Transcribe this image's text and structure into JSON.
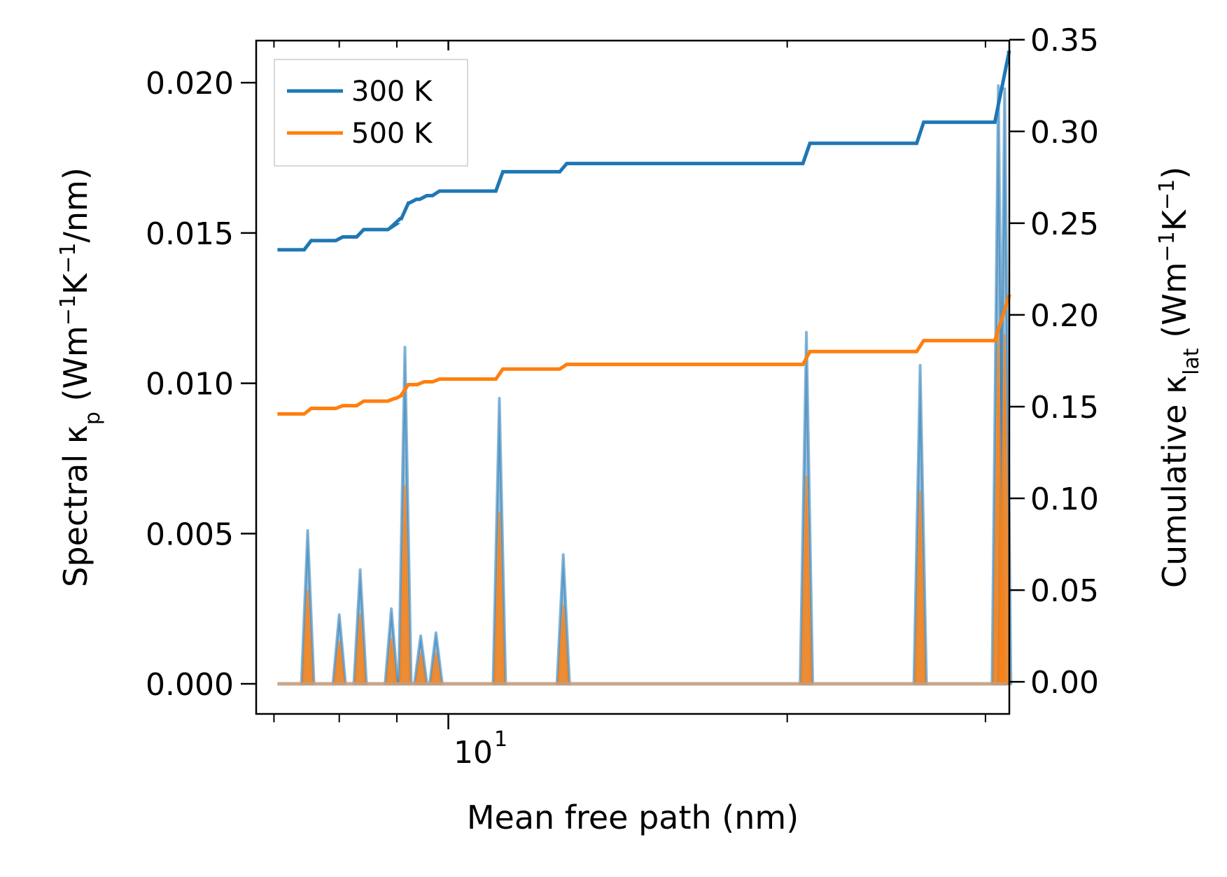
{
  "chart_data": {
    "type": "line",
    "title": "",
    "xlabel": "Mean free path (nm)",
    "xscale": "log",
    "x_range": [
      6.75,
      31.5
    ],
    "x_major_tick_label": {
      "base": "10",
      "exponent": "1",
      "value": 10
    },
    "x_minor_ticks": [
      7,
      8,
      9,
      20,
      30
    ],
    "ylabel_left": {
      "main": "Spectral κ",
      "sub": "p",
      "units": "(Wm",
      "sup1": "−1",
      "mid": "K",
      "sup2": "−1",
      "tail": "/nm)"
    },
    "ylim_left": [
      -0.001,
      0.0214
    ],
    "yticks_left": [
      "0.000",
      "0.005",
      "0.010",
      "0.015",
      "0.020"
    ],
    "ylabel_right": {
      "main": "Cumulative κ",
      "sub": "lat",
      "units": "(Wm",
      "sup1": "−1",
      "mid": "K",
      "sup2": "−1",
      "tail": ")"
    },
    "ylim_right": [
      -0.0175,
      0.3495
    ],
    "yticks_right": [
      "0.00",
      "0.05",
      "0.10",
      "0.15",
      "0.20",
      "0.25",
      "0.30",
      "0.35"
    ],
    "legend": {
      "placement": "upper-left",
      "entries": [
        {
          "label": "300 K",
          "color": "#1f77b4"
        },
        {
          "label": "500 K",
          "color": "#ff7f0e"
        }
      ]
    },
    "colors": {
      "300K": "#1f77b4",
      "500K": "#ff7f0e",
      "spike_300K": "#7aa7cb",
      "spike_500K": "#c39d7e"
    },
    "spectral_peaks": [
      {
        "mfp": 7.5,
        "k300": 0.0051,
        "k500": 0.0031
      },
      {
        "mfp": 8.0,
        "k300": 0.0023,
        "k500": 0.0014
      },
      {
        "mfp": 8.35,
        "k300": 0.0038,
        "k500": 0.0023
      },
      {
        "mfp": 8.9,
        "k300": 0.0025,
        "k500": 0.0015
      },
      {
        "mfp": 9.15,
        "k300": 0.0112,
        "k500": 0.0066
      },
      {
        "mfp": 9.45,
        "k300": 0.0016,
        "k500": 0.001
      },
      {
        "mfp": 9.75,
        "k300": 0.0017,
        "k500": 0.001
      },
      {
        "mfp": 11.1,
        "k300": 0.0095,
        "k500": 0.0057
      },
      {
        "mfp": 12.65,
        "k300": 0.0043,
        "k500": 0.0026
      },
      {
        "mfp": 20.8,
        "k300": 0.0117,
        "k500": 0.0069
      },
      {
        "mfp": 26.25,
        "k300": 0.0106,
        "k500": 0.0064
      },
      {
        "mfp": 30.8,
        "k300": 0.0199,
        "k500": 0.0117
      },
      {
        "mfp": 31.2,
        "k300": 0.0198,
        "k500": 0.0116
      }
    ],
    "series": [
      {
        "name": "300 K",
        "color": "#1f77b4",
        "start": 6.75,
        "end": 31.5,
        "start_value": 0.2355,
        "steps": [
          [
            7.5,
            0.2405
          ],
          [
            8.0,
            0.2425
          ],
          [
            8.35,
            0.2465
          ],
          [
            8.9,
            0.249
          ],
          [
            9.0,
            0.2525
          ],
          [
            9.15,
            0.261
          ],
          [
            9.3,
            0.263
          ],
          [
            9.5,
            0.265
          ],
          [
            9.75,
            0.2675
          ],
          [
            11.1,
            0.278
          ],
          [
            12.65,
            0.2825
          ],
          [
            20.8,
            0.2935
          ],
          [
            26.25,
            0.305
          ],
          [
            30.8,
            0.324
          ],
          [
            31.25,
            0.343
          ]
        ]
      },
      {
        "name": "500 K",
        "color": "#ff7f0e",
        "start": 6.75,
        "end": 31.5,
        "start_value": 0.146,
        "steps": [
          [
            7.5,
            0.149
          ],
          [
            8.0,
            0.1505
          ],
          [
            8.35,
            0.153
          ],
          [
            8.9,
            0.1545
          ],
          [
            9.05,
            0.1565
          ],
          [
            9.15,
            0.162
          ],
          [
            9.45,
            0.1635
          ],
          [
            9.75,
            0.165
          ],
          [
            11.1,
            0.1705
          ],
          [
            12.65,
            0.173
          ],
          [
            20.8,
            0.18
          ],
          [
            26.25,
            0.186
          ],
          [
            30.8,
            0.198
          ],
          [
            31.25,
            0.21
          ]
        ]
      }
    ]
  }
}
